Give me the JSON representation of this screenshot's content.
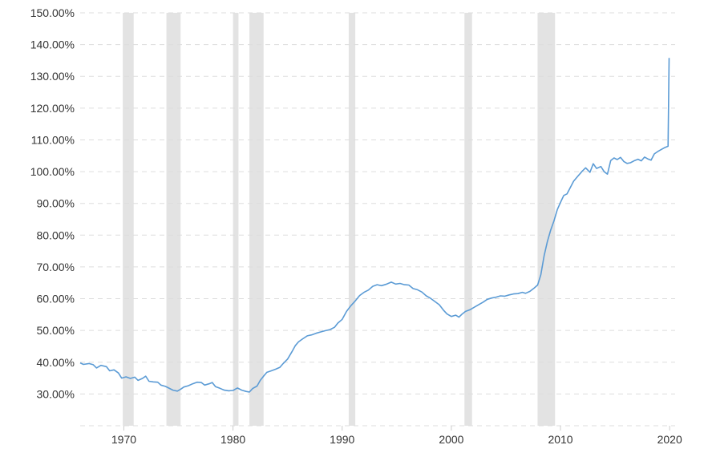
{
  "chart_data": {
    "type": "line",
    "title": "",
    "xlabel": "",
    "ylabel": "",
    "xlim": [
      1966,
      2020.5
    ],
    "ylim": [
      20,
      150
    ],
    "grid": true,
    "y_ticks": [
      30,
      40,
      50,
      60,
      70,
      80,
      90,
      100,
      110,
      120,
      130,
      140,
      150
    ],
    "y_tick_labels": [
      "30.00%",
      "40.00%",
      "50.00%",
      "60.00%",
      "70.00%",
      "80.00%",
      "90.00%",
      "100.00%",
      "110.00%",
      "120.00%",
      "130.00%",
      "140.00%",
      "150.00%"
    ],
    "x_ticks": [
      1970,
      1980,
      1990,
      2000,
      2010,
      2020
    ],
    "x_tick_labels": [
      "1970",
      "1980",
      "1990",
      "2000",
      "2010",
      "2020"
    ],
    "line_color": "#5b9bd5",
    "recession_color": "#e3e3e3",
    "recessions": [
      [
        1969.9,
        1970.9
      ],
      [
        1973.9,
        1975.2
      ],
      [
        1980.0,
        1980.5
      ],
      [
        1981.5,
        1982.8
      ],
      [
        1990.6,
        1991.2
      ],
      [
        2001.2,
        2001.9
      ],
      [
        2007.9,
        2009.5
      ]
    ],
    "series": [
      {
        "name": "",
        "points": [
          [
            1966.0,
            39.8
          ],
          [
            1966.3,
            39.3
          ],
          [
            1966.8,
            39.6
          ],
          [
            1967.2,
            39.2
          ],
          [
            1967.5,
            38.2
          ],
          [
            1967.9,
            39.0
          ],
          [
            1968.4,
            38.6
          ],
          [
            1968.7,
            37.3
          ],
          [
            1969.1,
            37.6
          ],
          [
            1969.5,
            36.6
          ],
          [
            1969.8,
            35.0
          ],
          [
            1970.2,
            35.4
          ],
          [
            1970.6,
            34.9
          ],
          [
            1971.0,
            35.3
          ],
          [
            1971.3,
            34.3
          ],
          [
            1971.7,
            34.9
          ],
          [
            1972.0,
            35.6
          ],
          [
            1972.3,
            34.0
          ],
          [
            1972.7,
            33.8
          ],
          [
            1973.1,
            33.7
          ],
          [
            1973.4,
            32.8
          ],
          [
            1973.8,
            32.4
          ],
          [
            1974.1,
            31.9
          ],
          [
            1974.5,
            31.2
          ],
          [
            1974.9,
            30.9
          ],
          [
            1975.2,
            31.5
          ],
          [
            1975.5,
            32.2
          ],
          [
            1975.9,
            32.6
          ],
          [
            1976.3,
            33.2
          ],
          [
            1976.7,
            33.7
          ],
          [
            1977.1,
            33.6
          ],
          [
            1977.4,
            32.8
          ],
          [
            1977.8,
            33.2
          ],
          [
            1978.1,
            33.6
          ],
          [
            1978.4,
            32.3
          ],
          [
            1978.8,
            31.8
          ],
          [
            1979.2,
            31.2
          ],
          [
            1979.6,
            31.0
          ],
          [
            1980.0,
            31.1
          ],
          [
            1980.4,
            31.9
          ],
          [
            1980.8,
            31.2
          ],
          [
            1981.2,
            30.8
          ],
          [
            1981.5,
            30.6
          ],
          [
            1981.8,
            31.7
          ],
          [
            1982.2,
            32.5
          ],
          [
            1982.5,
            34.3
          ],
          [
            1982.8,
            35.6
          ],
          [
            1983.1,
            36.8
          ],
          [
            1983.5,
            37.3
          ],
          [
            1983.9,
            37.8
          ],
          [
            1984.3,
            38.4
          ],
          [
            1984.6,
            39.6
          ],
          [
            1985.0,
            41.0
          ],
          [
            1985.4,
            43.3
          ],
          [
            1985.7,
            45.2
          ],
          [
            1986.0,
            46.4
          ],
          [
            1986.4,
            47.4
          ],
          [
            1986.8,
            48.3
          ],
          [
            1987.2,
            48.6
          ],
          [
            1987.6,
            49.1
          ],
          [
            1988.0,
            49.5
          ],
          [
            1988.4,
            49.9
          ],
          [
            1988.9,
            50.3
          ],
          [
            1989.3,
            51.0
          ],
          [
            1989.6,
            52.3
          ],
          [
            1990.0,
            53.5
          ],
          [
            1990.4,
            56.0
          ],
          [
            1990.8,
            57.8
          ],
          [
            1991.2,
            59.3
          ],
          [
            1991.6,
            61.0
          ],
          [
            1992.0,
            62.0
          ],
          [
            1992.4,
            62.7
          ],
          [
            1992.8,
            63.9
          ],
          [
            1993.2,
            64.4
          ],
          [
            1993.6,
            64.1
          ],
          [
            1994.0,
            64.5
          ],
          [
            1994.5,
            65.2
          ],
          [
            1994.9,
            64.6
          ],
          [
            1995.3,
            64.8
          ],
          [
            1995.7,
            64.4
          ],
          [
            1996.1,
            64.3
          ],
          [
            1996.5,
            63.2
          ],
          [
            1996.9,
            62.8
          ],
          [
            1997.3,
            62.1
          ],
          [
            1997.7,
            60.9
          ],
          [
            1998.1,
            60.1
          ],
          [
            1998.5,
            59.1
          ],
          [
            1998.9,
            58.1
          ],
          [
            1999.3,
            56.3
          ],
          [
            1999.6,
            55.2
          ],
          [
            2000.0,
            54.4
          ],
          [
            2000.4,
            54.8
          ],
          [
            2000.7,
            54.2
          ],
          [
            2001.0,
            55.2
          ],
          [
            2001.3,
            56.0
          ],
          [
            2001.7,
            56.5
          ],
          [
            2002.1,
            57.3
          ],
          [
            2002.5,
            58.1
          ],
          [
            2002.9,
            58.9
          ],
          [
            2003.3,
            59.8
          ],
          [
            2003.7,
            60.2
          ],
          [
            2004.1,
            60.5
          ],
          [
            2004.5,
            60.9
          ],
          [
            2004.9,
            60.8
          ],
          [
            2005.3,
            61.2
          ],
          [
            2005.7,
            61.5
          ],
          [
            2006.1,
            61.6
          ],
          [
            2006.5,
            62.0
          ],
          [
            2006.8,
            61.7
          ],
          [
            2007.2,
            62.3
          ],
          [
            2007.6,
            63.4
          ],
          [
            2007.9,
            64.3
          ],
          [
            2008.2,
            67.5
          ],
          [
            2008.5,
            73.5
          ],
          [
            2008.8,
            78.0
          ],
          [
            2009.1,
            81.6
          ],
          [
            2009.4,
            84.5
          ],
          [
            2009.7,
            88.0
          ],
          [
            2010.0,
            90.3
          ],
          [
            2010.3,
            92.5
          ],
          [
            2010.6,
            93.0
          ],
          [
            2010.9,
            95.0
          ],
          [
            2011.2,
            97.0
          ],
          [
            2011.6,
            98.6
          ],
          [
            2012.0,
            100.2
          ],
          [
            2012.3,
            101.2
          ],
          [
            2012.7,
            99.8
          ],
          [
            2013.0,
            102.5
          ],
          [
            2013.3,
            101.0
          ],
          [
            2013.7,
            101.6
          ],
          [
            2014.0,
            100.0
          ],
          [
            2014.3,
            99.2
          ],
          [
            2014.6,
            103.5
          ],
          [
            2014.9,
            104.3
          ],
          [
            2015.2,
            103.8
          ],
          [
            2015.5,
            104.5
          ],
          [
            2015.8,
            103.2
          ],
          [
            2016.1,
            102.6
          ],
          [
            2016.4,
            102.8
          ],
          [
            2016.8,
            103.5
          ],
          [
            2017.1,
            103.9
          ],
          [
            2017.4,
            103.4
          ],
          [
            2017.7,
            104.6
          ],
          [
            2018.0,
            104.0
          ],
          [
            2018.3,
            103.6
          ],
          [
            2018.6,
            105.6
          ],
          [
            2018.9,
            106.3
          ],
          [
            2019.2,
            106.9
          ],
          [
            2019.5,
            107.5
          ],
          [
            2019.85,
            108.0
          ],
          [
            2019.95,
            135.8
          ]
        ]
      }
    ]
  }
}
